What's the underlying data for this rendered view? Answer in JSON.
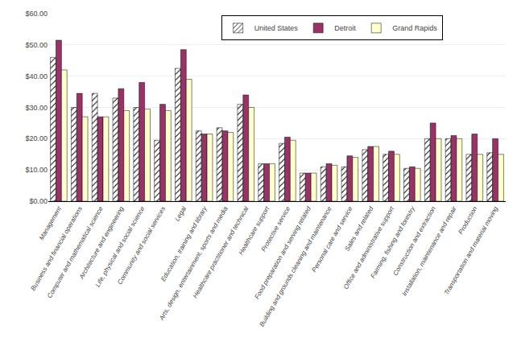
{
  "chart_data": {
    "type": "bar",
    "categories": [
      "Management",
      "Business and financial operations",
      "Computer and mathematical science",
      "Architecture and engineering",
      "Life, physical and social science",
      "Community and social services",
      "Legal",
      "Education, training and library",
      "Arts, design, entertainment, sports and media",
      "Healthcare practitioner and technical",
      "Healthcare support",
      "Protective service",
      "Food preparation and serving related",
      "Building and grounds cleaning and maintenance",
      "Personal care and service",
      "Sales and related",
      "Office and administrative support",
      "Farming, fishing and forestry",
      "Construction and extraction",
      "Installation, maintenance and repair",
      "Production",
      "Transportation and material moving"
    ],
    "series": [
      {
        "name": "United States",
        "color": "#9999FF",
        "values": [
          46.0,
          30.0,
          34.5,
          33.0,
          30.0,
          19.5,
          42.5,
          22.5,
          23.5,
          31.0,
          12.0,
          18.5,
          9.0,
          11.0,
          11.0,
          16.5,
          15.0,
          10.5,
          20.0,
          20.0,
          15.0,
          15.5
        ]
      },
      {
        "name": "Detroit",
        "color": "#993366",
        "values": [
          51.5,
          34.5,
          27.0,
          36.0,
          38.0,
          31.0,
          48.5,
          21.5,
          22.5,
          34.0,
          12.0,
          20.5,
          9.0,
          12.0,
          14.5,
          17.5,
          16.0,
          11.0,
          25.0,
          21.0,
          21.5,
          20.0
        ]
      },
      {
        "name": "Grand Rapids",
        "color": "#FFFFCC",
        "values": [
          42.0,
          27.0,
          27.0,
          29.0,
          29.5,
          29.0,
          39.0,
          21.5,
          22.0,
          30.0,
          12.0,
          19.5,
          9.0,
          11.5,
          14.0,
          17.5,
          15.0,
          10.5,
          20.0,
          20.0,
          15.0,
          15.0
        ]
      }
    ],
    "ylim": [
      0,
      60
    ],
    "yticks": [
      {
        "value": 0,
        "label": "$0.00"
      },
      {
        "value": 10,
        "label": "$10.00"
      },
      {
        "value": 20,
        "label": "$20.00"
      },
      {
        "value": 30,
        "label": "$30.00"
      },
      {
        "value": 40,
        "label": "$40.00"
      },
      {
        "value": 50,
        "label": "$50.00"
      },
      {
        "value": 60,
        "label": "$60.00"
      }
    ],
    "grid": true,
    "legend": "upper center"
  }
}
